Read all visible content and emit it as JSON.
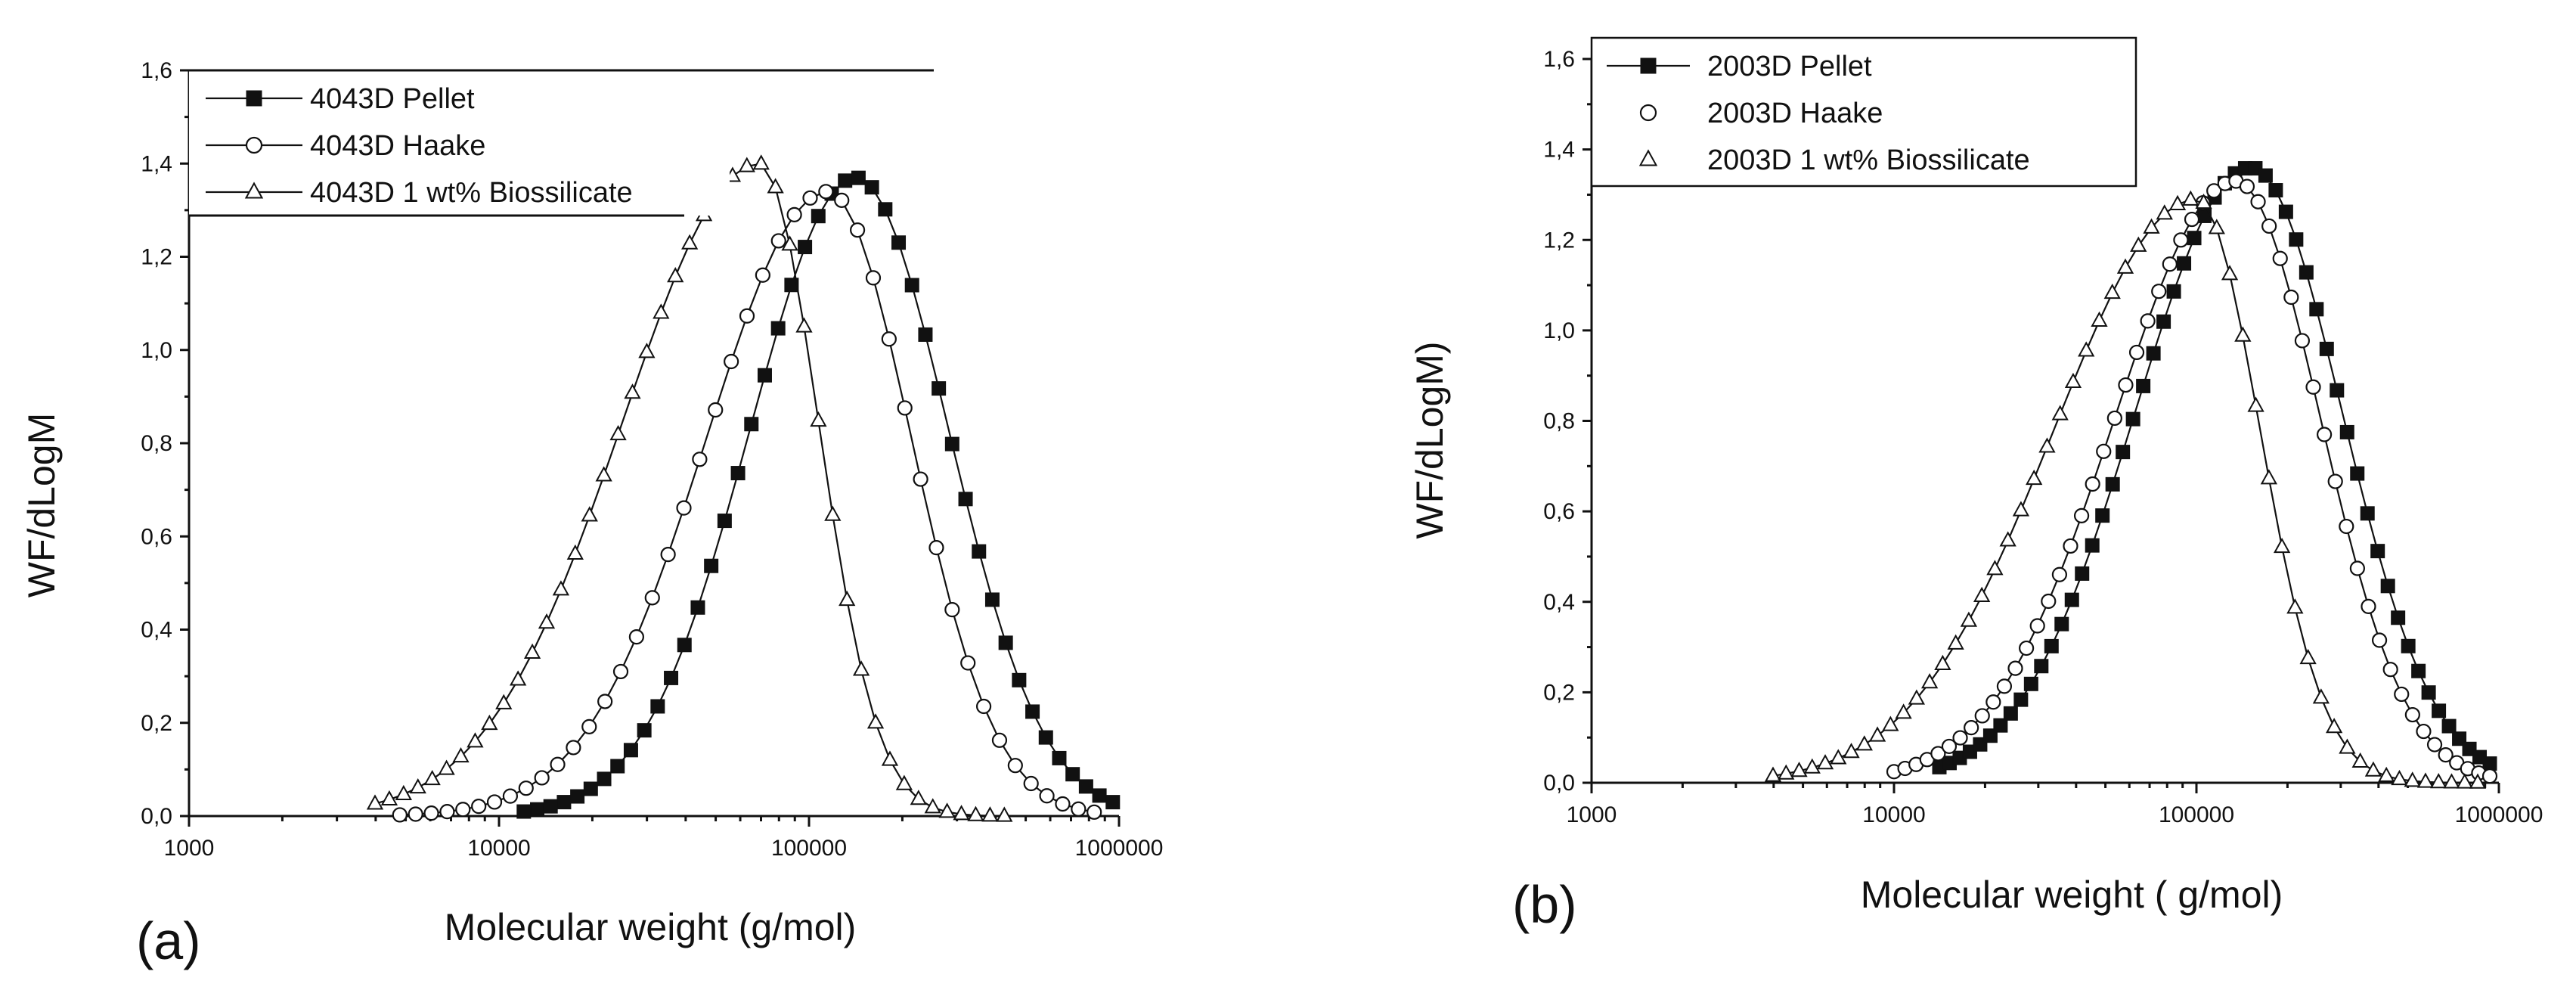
{
  "figure": {
    "panels": [
      "(a)",
      "(b)"
    ]
  },
  "chart_data": [
    {
      "type": "line",
      "panel_label": "(a)",
      "title": "",
      "xlabel": "Molecular weight (g/mol)",
      "ylabel": "WF/dLogM",
      "x_scale": "log",
      "xlim": [
        1000,
        1000000
      ],
      "ylim": [
        0,
        1.6
      ],
      "x_ticks": [
        1000,
        10000,
        100000,
        1000000
      ],
      "x_tick_labels": [
        "1000",
        "10000",
        "100000",
        "1000000"
      ],
      "y_ticks": [
        0,
        0.2,
        0.4,
        0.6,
        0.8,
        1.0,
        1.2,
        1.4,
        1.6
      ],
      "y_tick_labels": [
        "0,0",
        "0,2",
        "0,4",
        "0,6",
        "0,8",
        "1,0",
        "1,2",
        "1,4",
        "1,6"
      ],
      "legend_position": "top-left",
      "legend_style": "line-marker",
      "series": [
        {
          "name": "4043D Pellet",
          "marker": "square-filled",
          "peak_logM": 5.15,
          "peak_y": 1.37,
          "sigma_left": 0.34,
          "sigma_right": 0.3,
          "start_logM": 4.08,
          "end_logM": 5.98,
          "points": 45
        },
        {
          "name": "4043D Haake",
          "marker": "circle-open",
          "peak_logM": 5.06,
          "peak_y": 1.34,
          "sigma_left": 0.39,
          "sigma_right": 0.27,
          "start_logM": 3.68,
          "end_logM": 5.92,
          "points": 45
        },
        {
          "name": "4043D 1 wt% Biossilicate",
          "marker": "triangle-open",
          "peak_logM": 4.84,
          "peak_y": 1.4,
          "sigma_left": 0.44,
          "sigma_right": 0.19,
          "start_logM": 3.6,
          "end_logM": 5.63,
          "points": 45
        }
      ]
    },
    {
      "type": "line",
      "panel_label": "(b)",
      "title": "",
      "xlabel": "Molecular weight  ( g/mol)",
      "ylabel": "WF/dLogM)",
      "x_scale": "log",
      "xlim": [
        1000,
        1000000
      ],
      "ylim": [
        0,
        1.6
      ],
      "x_ticks": [
        1000,
        10000,
        100000,
        1000000
      ],
      "x_tick_labels": [
        "1000",
        "10000",
        "100000",
        "1000000"
      ],
      "y_ticks": [
        0,
        0.2,
        0.4,
        0.6,
        0.8,
        1.0,
        1.2,
        1.4,
        1.6
      ],
      "y_tick_labels": [
        "0,0",
        "0,2",
        "0,4",
        "0,6",
        "0,8",
        "1,0",
        "1,2",
        "1,4",
        "1,6"
      ],
      "legend_position": "top-left",
      "legend_style": "line-marker-first-only",
      "series": [
        {
          "name": "2003D Pellet",
          "marker": "square-filled",
          "peak_logM": 5.18,
          "peak_y": 1.36,
          "sigma_left": 0.38,
          "sigma_right": 0.3,
          "start_logM": 4.15,
          "end_logM": 5.97,
          "points": 55
        },
        {
          "name": "2003D Haake",
          "marker": "circle-open",
          "peak_logM": 5.13,
          "peak_y": 1.33,
          "sigma_left": 0.4,
          "sigma_right": 0.28,
          "start_logM": 4.0,
          "end_logM": 5.97,
          "points": 55
        },
        {
          "name": "2003D 1 wt% Biossilicate",
          "marker": "triangle-open",
          "peak_logM": 5.0,
          "peak_y": 1.29,
          "sigma_left": 0.47,
          "sigma_right": 0.21,
          "start_logM": 3.6,
          "end_logM": 5.93,
          "points": 55
        }
      ]
    }
  ]
}
